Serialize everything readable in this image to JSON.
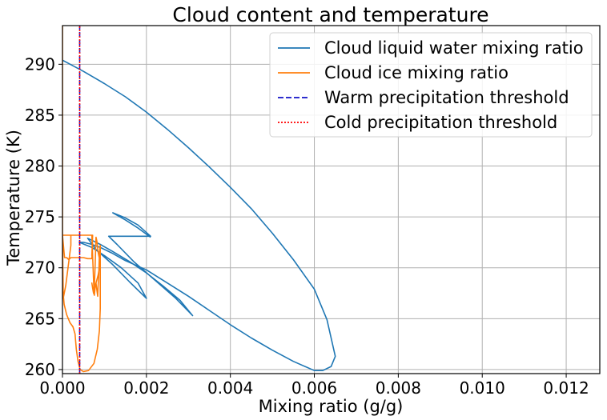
{
  "chart_data": {
    "type": "line",
    "title": "Cloud content and temperature",
    "xlabel": "Mixing ratio (g/g)",
    "ylabel": "Temperature (K)",
    "xlim": [
      0,
      0.0128
    ],
    "ylim": [
      259.6,
      293.8
    ],
    "xticks": [
      0,
      0.002,
      0.004,
      0.006,
      0.008,
      0.01,
      0.012
    ],
    "xtick_labels": [
      "0.000",
      "0.002",
      "0.004",
      "0.006",
      "0.008",
      "0.010",
      "0.012"
    ],
    "yticks": [
      260,
      265,
      270,
      275,
      280,
      285,
      290
    ],
    "ytick_labels": [
      "260",
      "265",
      "270",
      "275",
      "280",
      "285",
      "290"
    ],
    "grid": true,
    "legend_position": "top-right",
    "series": [
      {
        "name": "Cloud liquid water mixing ratio",
        "color": "#1f77b4",
        "style": "solid",
        "x": [
          0,
          0.0005,
          0.001,
          0.0015,
          0.002,
          0.0025,
          0.003,
          0.0035,
          0.004,
          0.0045,
          0.005,
          0.0055,
          0.006,
          0.0063,
          0.0065,
          0.0064,
          0.0062,
          0.006,
          0.0055,
          0.005,
          0.0045,
          0.004,
          0.0035,
          0.003,
          0.0025,
          0.002,
          0.0015,
          0.0012,
          0.0009,
          0.0007,
          0.0005,
          0.0004,
          0.0007,
          0.001,
          0.0014,
          0.0018,
          0.002,
          0.0016,
          0.0012,
          0.0008,
          0.0006,
          0.0009,
          0.0012,
          0.0016,
          0.002,
          0.0024,
          0.0028,
          0.0031,
          0.0027,
          0.0022,
          0.0017,
          0.0013,
          0.0011,
          0.0015,
          0.0019,
          0.0021,
          0.0018,
          0.0015,
          0.0012,
          0.0015,
          0.0018,
          0.0021
        ],
        "y": [
          290.4,
          289.3,
          288.1,
          286.8,
          285.3,
          283.6,
          281.8,
          279.9,
          277.9,
          275.8,
          273.4,
          270.8,
          267.9,
          264.9,
          261.3,
          260.3,
          259.9,
          259.9,
          260.8,
          261.9,
          263.1,
          264.4,
          265.8,
          267.2,
          268.5,
          269.8,
          270.7,
          271.4,
          272.0,
          272.3,
          272.5,
          272.5,
          272.0,
          271.2,
          270.0,
          268.5,
          267.0,
          268.6,
          270.3,
          271.8,
          272.9,
          272.3,
          271.6,
          270.6,
          269.5,
          268.2,
          266.8,
          265.3,
          267.0,
          268.8,
          270.6,
          272.3,
          273.1,
          273.1,
          273.1,
          273.1,
          274.2,
          274.9,
          275.4,
          274.7,
          273.9,
          273.0
        ]
      },
      {
        "name": "Cloud ice mixing ratio",
        "color": "#ff7f0e",
        "style": "solid",
        "x": [
          0,
          0,
          2e-05,
          8e-05,
          0.00015,
          0.0002,
          0.0002,
          0.00015,
          8e-05,
          2e-05,
          0,
          5e-05,
          0.0001,
          0.00015,
          0.0002,
          0.0003,
          0.0004,
          0.0005,
          0.0006,
          0.0007,
          0.00072,
          0.0007,
          0.00072,
          0,
          0.0007,
          0.00075,
          0.0008,
          0.00085,
          0.0009,
          0.00085,
          0.00082,
          0.0008,
          0.00078,
          0.00076,
          0.00074,
          0.00072,
          0.0007,
          0.00072,
          0.00074,
          0.00076,
          0.00078,
          0.0008,
          0.00082,
          0.00084,
          0.00085,
          0.00086,
          0.00087,
          0.00088,
          0.0009,
          0.0009,
          0.00088,
          0.00083,
          0.00075,
          0.00062,
          0.0005,
          0.00042,
          0.00037,
          0.00033,
          0.0003,
          0.00025,
          0.00018,
          0.0001,
          4e-05,
          1e-05,
          0
        ],
        "y": [
          293.8,
          273.2,
          267.0,
          268.3,
          270.6,
          272.2,
          273.2,
          273.2,
          273.2,
          273.2,
          273.2,
          271.0,
          271.0,
          270.8,
          271.0,
          271.0,
          271.0,
          271.0,
          270.9,
          270.9,
          272.4,
          271.2,
          273.2,
          273.2,
          273.2,
          267.8,
          268.5,
          269.3,
          270.5,
          271.5,
          272.6,
          273.0,
          270.5,
          268.0,
          267.5,
          268.0,
          268.5,
          268.0,
          267.6,
          267.3,
          268.1,
          268.5,
          267.8,
          267.2,
          268.3,
          268.9,
          270.0,
          271.3,
          272.2,
          266.0,
          263.8,
          262.0,
          260.6,
          259.9,
          259.8,
          260.0,
          260.8,
          262.0,
          263.5,
          264.2,
          264.6,
          265.4,
          266.4,
          267.8,
          269.0
        ]
      },
      {
        "name": "Warm precipitation threshold",
        "color": "#1010c8",
        "style": "dashed",
        "x": [
          0.00041,
          0.00041
        ],
        "y": [
          259.6,
          293.8
        ]
      },
      {
        "name": "Cold precipitation threshold",
        "color": "#ff0000",
        "style": "dotted",
        "x": [
          0.00041,
          0.00041
        ],
        "y": [
          259.6,
          293.8
        ]
      }
    ]
  }
}
